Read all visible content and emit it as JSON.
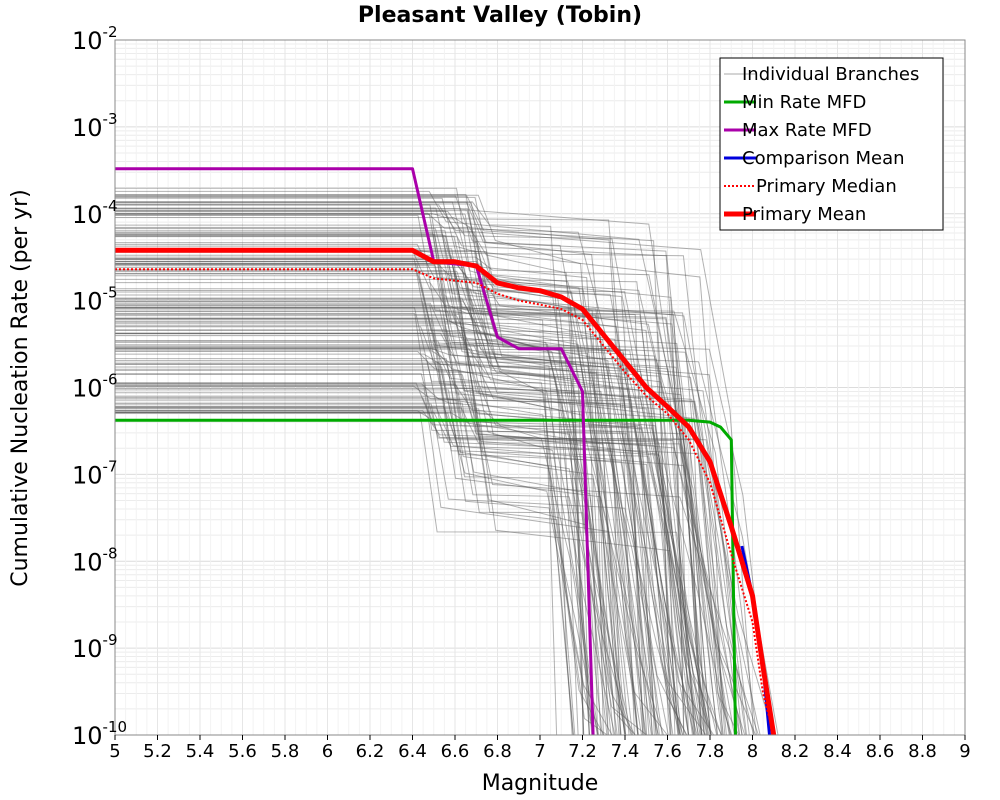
{
  "chart_data": {
    "type": "line",
    "title": "Pleasant Valley (Tobin)",
    "xlabel": "Magnitude",
    "ylabel": "Cumulative Nucleation Rate (per yr)",
    "xlim": [
      5,
      9
    ],
    "ylim": [
      1e-10,
      0.01
    ],
    "yscale": "log",
    "grid": true,
    "legend_position": "top-right",
    "x_ticks": [
      "5",
      "5.2",
      "5.4",
      "5.6",
      "5.8",
      "6",
      "6.2",
      "6.4",
      "6.6",
      "6.8",
      "7",
      "7.2",
      "7.4",
      "7.6",
      "7.8",
      "8",
      "8.2",
      "8.4",
      "8.6",
      "8.8",
      "9"
    ],
    "y_ticks": [
      {
        "base": "10",
        "exp": "-2"
      },
      {
        "base": "10",
        "exp": "-3"
      },
      {
        "base": "10",
        "exp": "-4"
      },
      {
        "base": "10",
        "exp": "-5"
      },
      {
        "base": "10",
        "exp": "-6"
      },
      {
        "base": "10",
        "exp": "-7"
      },
      {
        "base": "10",
        "exp": "-8"
      },
      {
        "base": "10",
        "exp": "-9"
      },
      {
        "base": "10",
        "exp": "-10"
      }
    ],
    "series": [
      {
        "name": "Individual Branches",
        "color": "#555555",
        "style": "thin",
        "x": [],
        "y": []
      },
      {
        "name": "Min Rate MFD",
        "color": "#00aa00",
        "style": "solid",
        "x": [
          5.0,
          6.4,
          6.5,
          7.0,
          7.5,
          7.7,
          7.8,
          7.85,
          7.9,
          7.92
        ],
        "y": [
          4.2e-07,
          4.2e-07,
          4.2e-07,
          4.2e-07,
          4.2e-07,
          4.2e-07,
          4e-07,
          3.5e-07,
          2.5e-07,
          1e-10
        ]
      },
      {
        "name": "Max Rate MFD",
        "color": "#aa00aa",
        "style": "solid",
        "x": [
          5.0,
          6.4,
          6.5,
          6.7,
          6.8,
          6.9,
          7.0,
          7.1,
          7.2,
          7.25
        ],
        "y": [
          0.00033,
          0.00033,
          2.8e-05,
          2.5e-05,
          3.8e-06,
          2.8e-06,
          2.8e-06,
          2.8e-06,
          9e-07,
          1e-10
        ]
      },
      {
        "name": "Comparison Mean",
        "color": "#0000dd",
        "style": "solid",
        "x": [
          7.95,
          8.0,
          8.05,
          8.08
        ],
        "y": [
          1.5e-08,
          4e-09,
          6e-10,
          1e-10
        ]
      },
      {
        "name": "Primary Median",
        "color": "#ff0000",
        "style": "dotted",
        "x": [
          5.0,
          6.4,
          6.5,
          6.6,
          6.7,
          6.8,
          6.9,
          7.0,
          7.1,
          7.2,
          7.3,
          7.4,
          7.5,
          7.6,
          7.7,
          7.8,
          7.9,
          8.0,
          8.05,
          8.1
        ],
        "y": [
          2.3e-05,
          2.3e-05,
          1.8e-05,
          1.7e-05,
          1.6e-05,
          1.2e-05,
          1e-05,
          9e-06,
          8e-06,
          6e-06,
          3e-06,
          1.5e-06,
          8e-07,
          5e-07,
          2.5e-07,
          8e-08,
          1.2e-08,
          2e-09,
          3e-10,
          1e-10
        ]
      },
      {
        "name": "Primary Mean",
        "color": "#ff0000",
        "style": "thick",
        "x": [
          5.0,
          6.4,
          6.5,
          6.6,
          6.7,
          6.8,
          6.9,
          7.0,
          7.1,
          7.2,
          7.3,
          7.4,
          7.5,
          7.6,
          7.7,
          7.8,
          7.9,
          8.0,
          8.05,
          8.1
        ],
        "y": [
          3.8e-05,
          3.8e-05,
          2.8e-05,
          2.8e-05,
          2.5e-05,
          1.6e-05,
          1.4e-05,
          1.3e-05,
          1.1e-05,
          8e-06,
          4e-06,
          2e-06,
          1e-06,
          6e-07,
          3.5e-07,
          1.4e-07,
          2.5e-08,
          4e-09,
          6e-10,
          1e-10
        ]
      }
    ]
  }
}
